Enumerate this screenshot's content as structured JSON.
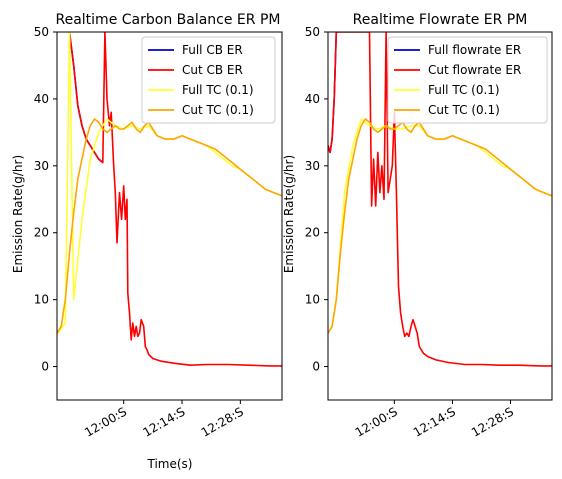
{
  "chart_data": [
    {
      "type": "line",
      "title": "Realtime Carbon Balance ER PM",
      "xlabel": "Time(s)",
      "ylabel": "Emission Rate(g/hr)",
      "ylim": [
        -5,
        50
      ],
      "yticks": [
        0,
        10,
        20,
        30,
        40,
        50
      ],
      "xlim": [
        "11:44",
        "12:38"
      ],
      "xticks": [
        "12:00:S",
        "12:14:S",
        "12:28:S"
      ],
      "xtick_minutes": [
        720,
        734,
        748
      ],
      "legend_position": "top-right",
      "grid": false,
      "series": [
        {
          "name": "Full CB ER",
          "color": "#0000cc",
          "x": [
            707,
            708,
            709,
            710,
            711,
            713,
            714,
            715
          ],
          "y": [
            50,
            45,
            39,
            36,
            34,
            32,
            31,
            30.5
          ]
        },
        {
          "name": "Cut CB ER",
          "color": "#ff0000",
          "x": [
            707,
            708,
            709,
            710,
            711,
            713,
            714,
            715,
            715.5,
            716,
            716.6,
            717,
            717.6,
            718,
            718.4,
            719,
            719.5,
            720,
            720.4,
            720.8,
            721,
            721.4,
            721.8,
            722.2,
            722.6,
            723,
            723.4,
            723.8,
            724.2,
            724.8,
            725.2,
            725.6,
            726,
            727,
            729,
            732,
            736,
            740,
            745,
            750,
            755,
            758
          ],
          "y": [
            50,
            45,
            39,
            36,
            34,
            32,
            31,
            30.5,
            50,
            40,
            36,
            38,
            30,
            26,
            18.5,
            26,
            22,
            27,
            22,
            25,
            11,
            8,
            4,
            6.5,
            4.5,
            6,
            4.5,
            5,
            7,
            6,
            3,
            2.5,
            1.8,
            1.2,
            0.8,
            0.5,
            0.2,
            0.3,
            0.3,
            0.2,
            0.1,
            0.1
          ]
        },
        {
          "name": "Full TC (0.1)",
          "color": "#ffff33",
          "x": [
            703,
            706,
            707,
            708,
            710,
            712,
            714,
            716,
            718,
            720,
            722,
            724,
            726,
            728,
            730,
            732,
            734,
            736,
            738,
            740,
            742,
            744,
            746,
            748,
            750,
            752,
            754,
            756,
            758
          ],
          "y": [
            4,
            6.5,
            50,
            10,
            22,
            31,
            35,
            37,
            36,
            35.5,
            36,
            35.5,
            36,
            34.5,
            34,
            34,
            34.5,
            34,
            33.5,
            33,
            32,
            31,
            30,
            29.5,
            28.5,
            27.5,
            26.5,
            26,
            25.5
          ]
        },
        {
          "name": "Cut TC (0.1)",
          "color": "#ffa500",
          "x": [
            703,
            704,
            705,
            706,
            707,
            708,
            709,
            710,
            711,
            712,
            713,
            714,
            715,
            716,
            717,
            718,
            719,
            720,
            721,
            722,
            723,
            724,
            725,
            726,
            727,
            728,
            730,
            732,
            734,
            736,
            738,
            740,
            742,
            744,
            746,
            748,
            750,
            752,
            754,
            756,
            758
          ],
          "y": [
            4,
            5,
            6,
            10,
            17,
            23,
            28,
            31,
            34,
            36,
            37,
            36.5,
            35.5,
            35,
            35.5,
            36,
            35.5,
            35.5,
            36,
            36.5,
            35.5,
            35,
            36,
            36.5,
            35.5,
            34.5,
            34,
            34,
            34.5,
            34,
            33.5,
            33,
            32.5,
            31.5,
            30.5,
            29.5,
            28.5,
            27.5,
            26.5,
            26,
            25.5
          ]
        }
      ]
    },
    {
      "type": "line",
      "title": "Realtime Flowrate ER PM",
      "xlabel": "",
      "ylabel": "Emission Rate(g/hr)",
      "ylim": [
        -5,
        50
      ],
      "yticks": [
        0,
        10,
        20,
        30,
        40,
        50
      ],
      "xlim": [
        "11:44",
        "12:38"
      ],
      "xticks": [
        "12:00:S",
        "12:14:S",
        "12:28:S"
      ],
      "xtick_minutes": [
        720,
        734,
        748
      ],
      "legend_position": "top-right",
      "grid": false,
      "series": [
        {
          "name": "Full flowrate ER",
          "color": "#0000cc",
          "x": [
            703,
            703.5,
            704,
            704.5,
            705,
            705.5,
            706
          ],
          "y": [
            16,
            25,
            33,
            32,
            34,
            40,
            50
          ]
        },
        {
          "name": "Cut flowrate ER",
          "color": "#ff0000",
          "x": [
            703,
            703.5,
            704,
            704.5,
            705,
            705.5,
            706,
            714,
            714.5,
            715,
            715.5,
            716,
            716.5,
            717,
            717.5,
            718,
            718.5,
            719,
            719.5,
            720,
            720.5,
            721,
            721.5,
            722,
            722.5,
            723,
            723.5,
            724,
            724.5,
            725,
            725.5,
            726,
            727,
            728,
            730,
            733,
            737,
            741,
            745,
            750,
            755,
            758
          ],
          "y": [
            16,
            25,
            33,
            32,
            34,
            40,
            50,
            50,
            24,
            31,
            24,
            32,
            26,
            30,
            25,
            50,
            26,
            28,
            30,
            38,
            26,
            12,
            8,
            6,
            4.5,
            5,
            4.5,
            6,
            7,
            6,
            5,
            3,
            2,
            1.5,
            1,
            0.6,
            0.3,
            0.3,
            0.2,
            0.2,
            0.1,
            0.1
          ]
        },
        {
          "name": "Full TC (0.1)",
          "color": "#ffff33",
          "x": [
            703,
            705,
            706,
            707,
            708,
            710,
            712,
            714,
            716,
            718,
            720,
            722,
            724,
            726,
            728,
            730,
            732,
            734,
            736,
            738,
            740,
            742,
            744,
            746,
            748,
            750,
            752,
            754,
            756,
            758
          ],
          "y": [
            4,
            6,
            10,
            18,
            26,
            33,
            37,
            36,
            35.5,
            36,
            35.5,
            35.5,
            36,
            36,
            34.5,
            34,
            34,
            34.5,
            34,
            33.5,
            33,
            32,
            31,
            30,
            29.5,
            28.5,
            27.5,
            26.5,
            26,
            25.5
          ]
        },
        {
          "name": "Cut TC (0.1)",
          "color": "#ffa500",
          "x": [
            703,
            704,
            705,
            706,
            707,
            708,
            709,
            710,
            711,
            712,
            713,
            714,
            715,
            716,
            717,
            718,
            719,
            720,
            721,
            722,
            723,
            724,
            725,
            726,
            727,
            728,
            730,
            732,
            734,
            736,
            738,
            740,
            742,
            744,
            746,
            748,
            750,
            752,
            754,
            756,
            758
          ],
          "y": [
            4,
            5,
            6,
            10,
            17,
            23,
            28,
            31,
            34,
            36,
            37,
            36.5,
            35.5,
            35,
            35.5,
            36,
            35.5,
            35.5,
            36,
            36.5,
            35.5,
            35,
            36,
            36.5,
            35.5,
            34.5,
            34,
            34,
            34.5,
            34,
            33.5,
            33,
            32.5,
            31.5,
            30.5,
            29.5,
            28.5,
            27.5,
            26.5,
            26,
            25.5
          ]
        }
      ]
    }
  ]
}
